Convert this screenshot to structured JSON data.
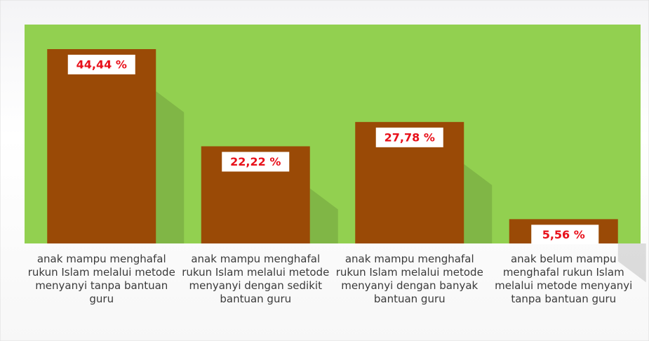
{
  "chart_data": {
    "type": "bar",
    "categories": [
      "anak mampu menghafal rukun Islam melalui metode menyanyi tanpa bantuan guru",
      "anak mampu menghafal rukun Islam melalui metode menyanyi dengan sedikit bantuan guru",
      "anak mampu menghafal rukun Islam melalui metode menyanyi dengan banyak bantuan guru",
      "anak belum mampu menghafal rukun Islam melalui metode menyanyi tanpa bantuan guru"
    ],
    "values": [
      44.44,
      22.22,
      27.78,
      5.56
    ],
    "value_labels": [
      "44,44 %",
      "22,22 %",
      "27,78 %",
      "5,56 %"
    ],
    "color": "#9a4a06",
    "background": "#92d050",
    "label_color": "#e8101a"
  }
}
